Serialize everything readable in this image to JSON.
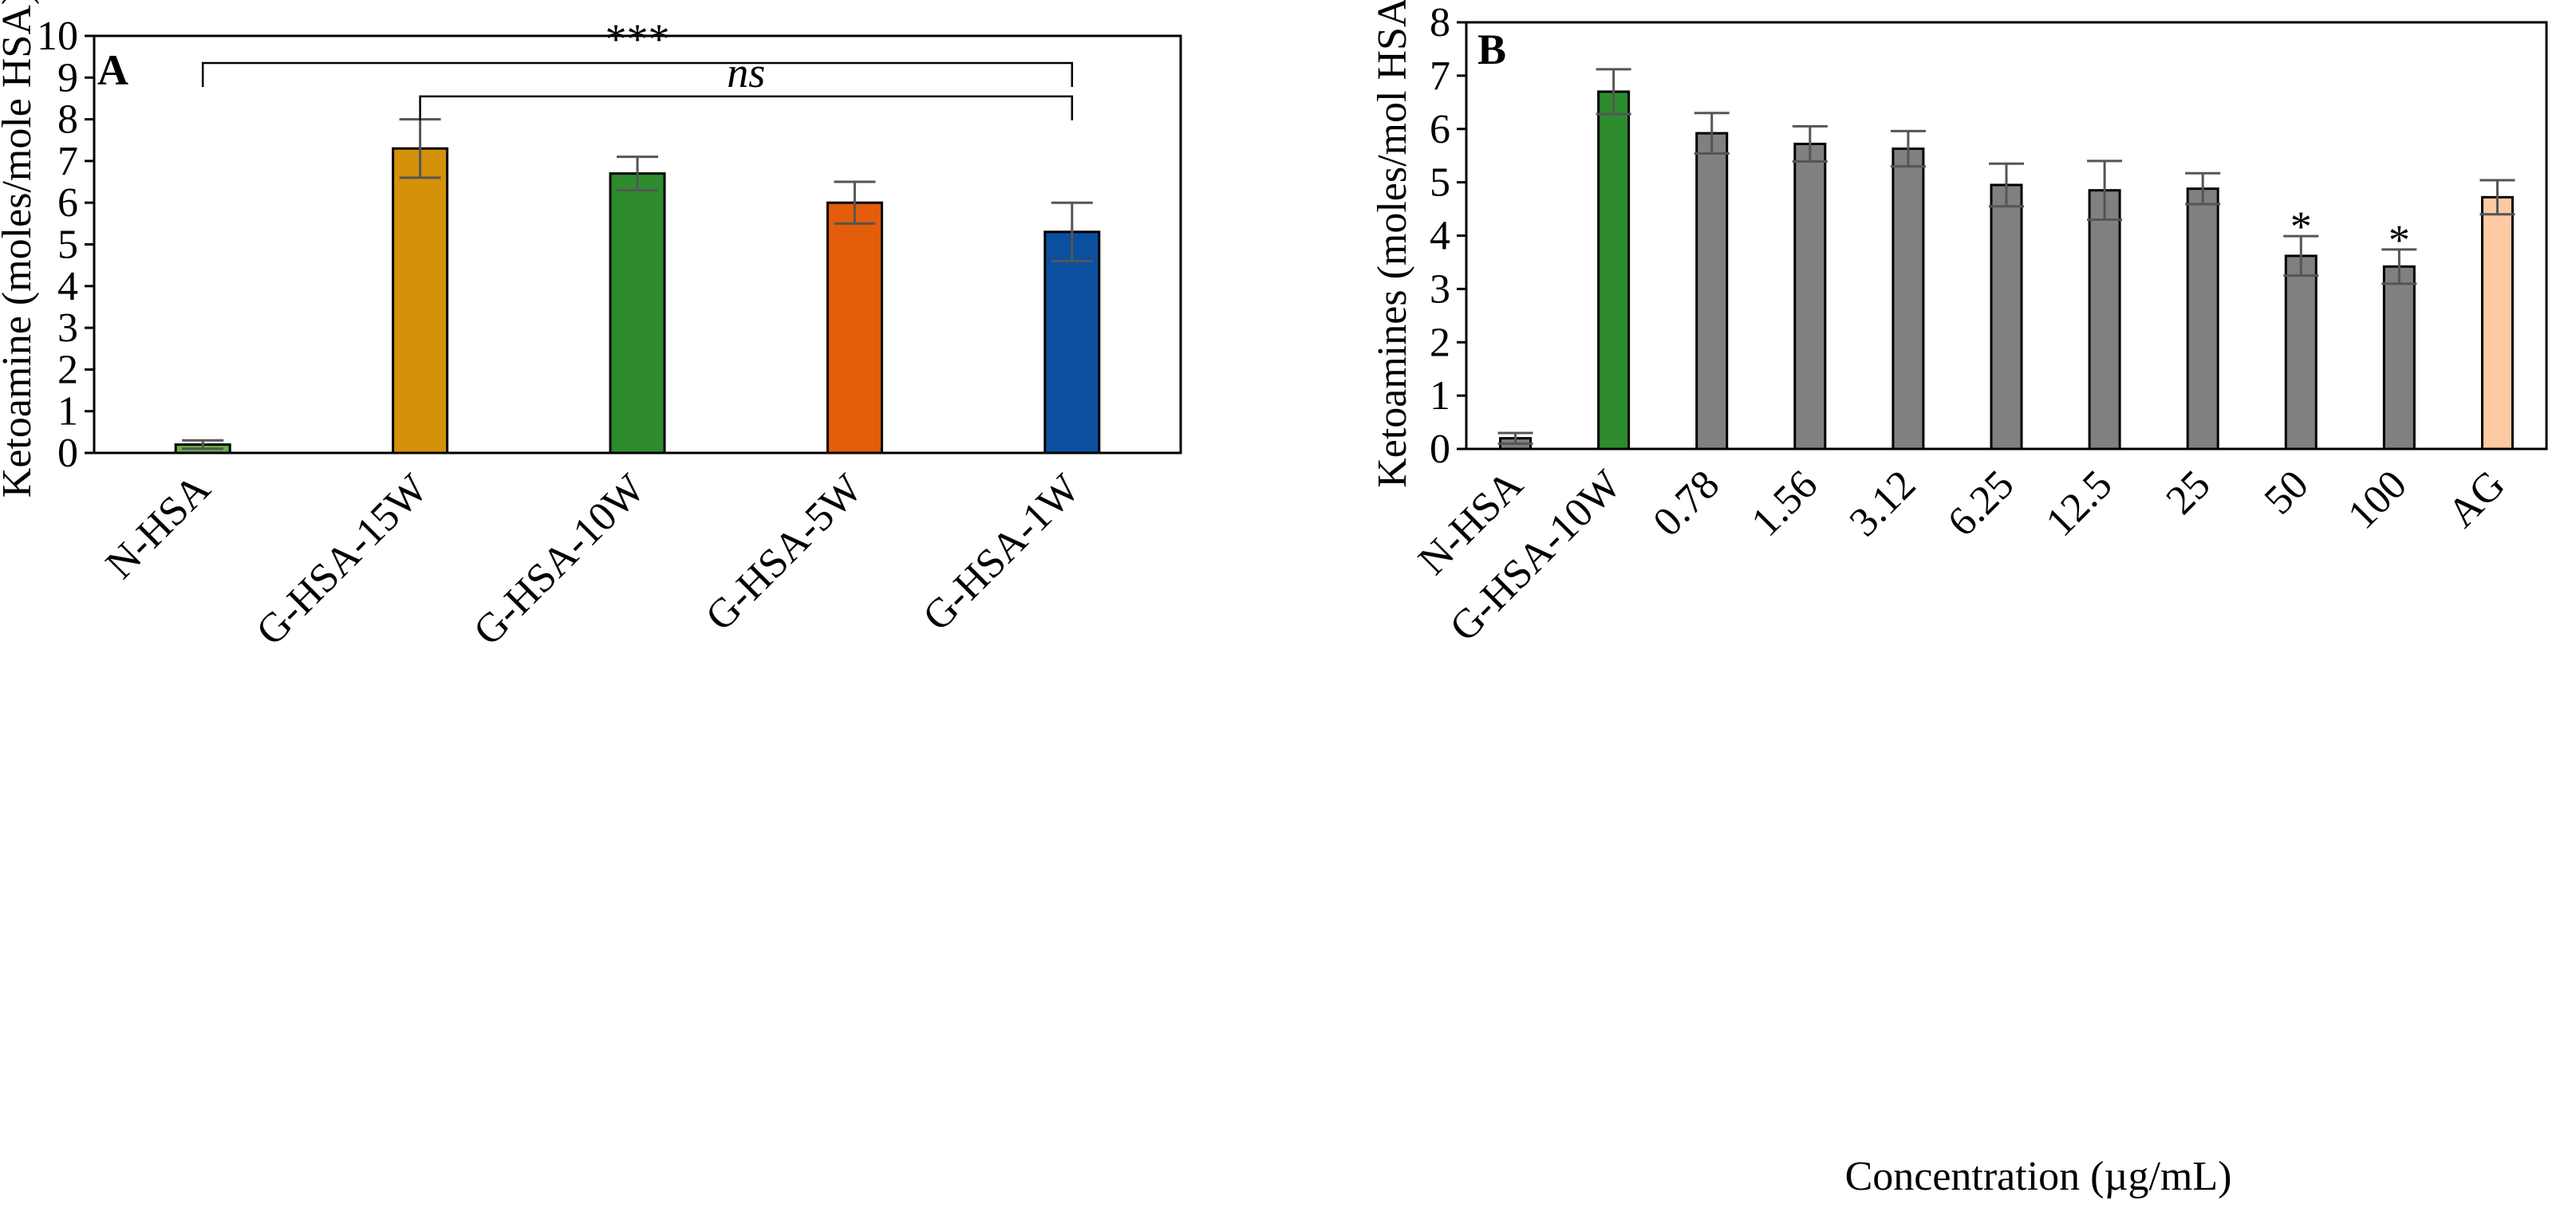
{
  "chart_data": [
    {
      "type": "bar",
      "panel_label": "A",
      "ylabel": "Ketoamine (moles/mole HSA)",
      "xlabel": "",
      "ylim": [
        0,
        10
      ],
      "yticks": [
        0,
        1,
        2,
        3,
        4,
        5,
        6,
        7,
        8,
        9,
        10
      ],
      "categories": [
        "N-HSA",
        "G-HSA-15W",
        "G-HSA-10W",
        "G-HSA-5W",
        "G-HSA-1W"
      ],
      "values": [
        0.2,
        7.3,
        6.7,
        6.0,
        5.3
      ],
      "errors": [
        0.1,
        0.7,
        0.4,
        0.5,
        0.7
      ],
      "colors": [
        "#6ab04c",
        "#d4920a",
        "#2e8b2e",
        "#e35d0a",
        "#0a4fa0"
      ],
      "annotations": [
        {
          "text": "***",
          "from": "N-HSA",
          "to": "G-HSA-1W",
          "level": 9.35,
          "italic": false
        },
        {
          "text": "ns",
          "from": "G-HSA-15W",
          "to": "G-HSA-1W",
          "level": 8.55,
          "italic": true
        }
      ]
    },
    {
      "type": "bar",
      "panel_label": "B",
      "ylabel": "Ketoamines (moles/mol HSA)",
      "xlabel": "Concentration (µg/mL)",
      "ylim": [
        0,
        8
      ],
      "yticks": [
        0,
        1,
        2,
        3,
        4,
        5,
        6,
        7,
        8
      ],
      "categories": [
        "N-HSA",
        "G-HSA-10W",
        "0.78",
        "1.56",
        "3.12",
        "6.25",
        "12.5",
        "25",
        "50",
        "100",
        "AG"
      ],
      "values": [
        0.2,
        6.7,
        5.92,
        5.72,
        5.63,
        4.95,
        4.85,
        4.88,
        3.62,
        3.42,
        4.72
      ],
      "errors": [
        0.1,
        0.42,
        0.38,
        0.33,
        0.33,
        0.4,
        0.55,
        0.29,
        0.37,
        0.32,
        0.32
      ],
      "colors": [
        "#808080",
        "#2e8b2e",
        "#808080",
        "#808080",
        "#808080",
        "#808080",
        "#808080",
        "#808080",
        "#808080",
        "#808080",
        "#fdcaa4"
      ],
      "star_marks": [
        {
          "category": "50",
          "text": "*"
        },
        {
          "category": "100",
          "text": "*"
        }
      ]
    }
  ]
}
